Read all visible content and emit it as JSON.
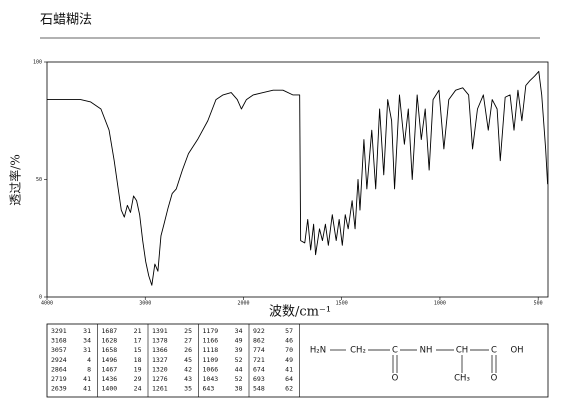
{
  "chart_data": {
    "type": "line",
    "title": "石蜡糊法",
    "x_label": "波数/cm⁻¹",
    "y_label": "透过率/%",
    "xlim": [
      4000,
      450
    ],
    "ylim": [
      0,
      100
    ],
    "x_scale_change": {
      "at": 2000,
      "factor": 2
    },
    "xticks": [
      4000,
      3000,
      2000,
      1500,
      1000,
      500
    ],
    "yticks": [
      0,
      50,
      100
    ],
    "color": "#000000",
    "x": [
      4000,
      3658,
      3555,
      3451,
      3368,
      3316,
      3275,
      3244,
      3213,
      3182,
      3150,
      3119,
      3088,
      3057,
      3026,
      2995,
      2964,
      2933,
      2902,
      2871,
      2840,
      2809,
      2767,
      2726,
      2684,
      2653,
      2622,
      2560,
      2467,
      2363,
      2280,
      2208,
      2125,
      2063,
      2021,
      1985,
      1950,
      1900,
      1849,
      1799,
      1749,
      1714,
      1709,
      1688,
      1673,
      1658,
      1643,
      1633,
      1613,
      1598,
      1583,
      1568,
      1548,
      1528,
      1513,
      1497,
      1482,
      1467,
      1447,
      1432,
      1417,
      1407,
      1387,
      1372,
      1347,
      1327,
      1307,
      1286,
      1266,
      1246,
      1231,
      1206,
      1181,
      1161,
      1141,
      1116,
      1095,
      1075,
      1055,
      1035,
      1005,
      980,
      955,
      920,
      884,
      854,
      834,
      809,
      779,
      754,
      734,
      709,
      693,
      668,
      643,
      623,
      603,
      583,
      563,
      543,
      518,
      497,
      482,
      462,
      452
    ],
    "values": [
      84,
      84,
      83,
      80,
      71,
      58,
      46,
      37,
      34,
      39,
      36,
      43,
      41,
      35,
      24,
      15,
      9,
      5,
      14,
      11,
      26,
      31,
      38,
      44,
      46,
      50,
      54,
      61,
      67,
      75,
      84,
      86,
      87,
      84,
      80,
      84,
      86,
      87,
      88,
      88,
      86,
      86,
      24,
      23,
      33,
      20,
      31,
      18,
      29,
      24,
      31,
      22,
      35,
      24,
      33,
      22,
      35,
      29,
      41,
      29,
      50,
      37,
      67,
      46,
      71,
      46,
      80,
      52,
      84,
      75,
      46,
      86,
      65,
      80,
      50,
      86,
      67,
      80,
      54,
      84,
      88,
      63,
      84,
      88,
      89,
      86,
      63,
      80,
      86,
      71,
      84,
      80,
      58,
      85,
      86,
      71,
      88,
      75,
      90,
      92,
      94,
      96,
      86,
      63,
      48
    ]
  },
  "peak_table": {
    "columns": [
      [
        [
          "3291",
          "31"
        ],
        [
          "3168",
          "34"
        ],
        [
          "3057",
          "31"
        ],
        [
          "2924",
          "4"
        ],
        [
          "2864",
          "8"
        ],
        [
          "2719",
          "41"
        ],
        [
          "2639",
          "41"
        ]
      ],
      [
        [
          "1687",
          "21"
        ],
        [
          "1628",
          "17"
        ],
        [
          "1658",
          "15"
        ],
        [
          "1496",
          "18"
        ],
        [
          "1467",
          "19"
        ],
        [
          "1436",
          "29"
        ],
        [
          "1400",
          "24"
        ]
      ],
      [
        [
          "1391",
          "25"
        ],
        [
          "1378",
          "27"
        ],
        [
          "1366",
          "26"
        ],
        [
          "1327",
          "45"
        ],
        [
          "1320",
          "42"
        ],
        [
          "1276",
          "43"
        ],
        [
          "1261",
          "35"
        ]
      ],
      [
        [
          "1179",
          "34"
        ],
        [
          "1166",
          "49"
        ],
        [
          "1118",
          "39"
        ],
        [
          "1109",
          "52"
        ],
        [
          "1066",
          "44"
        ],
        [
          "1043",
          "52"
        ],
        [
          "643",
          "38"
        ]
      ],
      [
        [
          "922",
          "57"
        ],
        [
          "862",
          "46"
        ],
        [
          "774",
          "70"
        ],
        [
          "721",
          "49"
        ],
        [
          "674",
          "41"
        ],
        [
          "693",
          "64"
        ],
        [
          "548",
          "62"
        ]
      ]
    ]
  },
  "structure": {
    "main": [
      "H₂N",
      "CH₂",
      "C",
      "NH",
      "CH",
      "C",
      "OH"
    ],
    "below": [
      "O",
      "CH₃",
      "O"
    ]
  }
}
